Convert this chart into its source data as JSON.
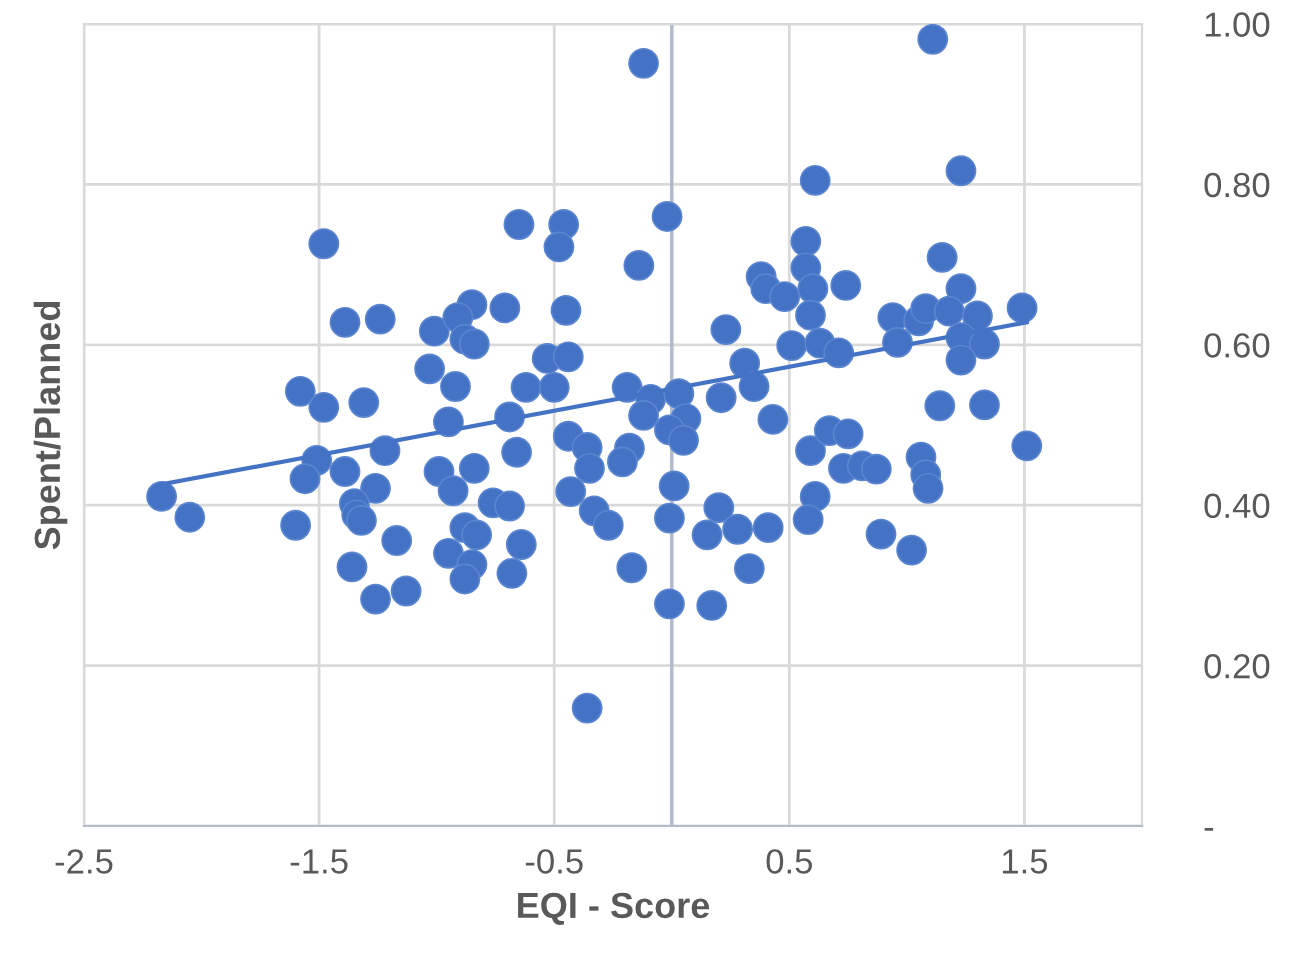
{
  "chart_data": {
    "type": "scatter",
    "xlabel": "EQI - Score",
    "ylabel": "Spent/Planned",
    "xlim": [
      -2.5,
      2.0
    ],
    "xticks": [
      {
        "value": -2.5,
        "label": "-2.5"
      },
      {
        "value": -1.5,
        "label": "-1.5"
      },
      {
        "value": -0.5,
        "label": "-0.5"
      },
      {
        "value": 0.5,
        "label": "0.5"
      },
      {
        "value": 1.5,
        "label": "1.5"
      }
    ],
    "ylim": [
      0,
      1.0
    ],
    "yticks": [
      {
        "value": 0,
        "label": "-"
      },
      {
        "value": 0.2,
        "label": "0.20"
      },
      {
        "value": 0.4,
        "label": "0.40"
      },
      {
        "value": 0.6,
        "label": "0.60"
      },
      {
        "value": 0.8,
        "label": "0.80"
      },
      {
        "value": 1.0,
        "label": "1.00"
      }
    ],
    "grid": true,
    "marker": "circle",
    "ref_lines": [
      {
        "axis": "x",
        "value": 0,
        "color": "#b4bccc"
      }
    ],
    "series": [
      {
        "color": "#4472c4",
        "x": [
          -1.48,
          -1.39,
          -1.24,
          -1.01,
          -0.85,
          -0.91,
          -0.88,
          -1.03,
          -0.92,
          -1.58,
          -1.48,
          -1.31,
          -0.95,
          -1.22,
          -1.51,
          -1.56,
          -1.39,
          -1.26,
          -0.99,
          -0.93,
          -0.84,
          -2.17,
          -2.05,
          -1.6,
          -1.35,
          -1.34,
          -1.32,
          -1.17,
          -0.88,
          -0.95,
          -0.85,
          -0.88,
          -1.36,
          -1.26,
          -1.13,
          -0.12,
          -0.02,
          -0.65,
          -0.46,
          -0.48,
          -0.14,
          0.61,
          0.57,
          0.57,
          0.6,
          0.59,
          0.38,
          0.4,
          0.48,
          0.74,
          0.51,
          0.63,
          0.71,
          0.23,
          0.31,
          0.35,
          0.21,
          0.43,
          -0.71,
          -0.84,
          -0.45,
          -0.53,
          -0.44,
          -0.62,
          -0.5,
          -0.69,
          -0.66,
          -0.44,
          -0.36,
          -0.35,
          -0.19,
          -0.09,
          -0.12,
          0.03,
          0.06,
          -0.01,
          0.05,
          -0.18,
          -0.21,
          -0.43,
          -0.33,
          -0.27,
          -0.76,
          -0.69,
          -0.83,
          -0.64,
          -0.68,
          -0.17,
          0.01,
          -0.01,
          -0.01,
          0.17,
          0.2,
          0.15,
          0.28,
          0.41,
          0.33,
          0.59,
          0.67,
          0.73,
          0.61,
          0.58,
          -0.36,
          1.11,
          1.23,
          1.15,
          1.23,
          0.94,
          1.05,
          1.08,
          1.18,
          1.3,
          1.49,
          0.96,
          1.23,
          1.33,
          1.23,
          1.14,
          1.33,
          1.51,
          0.75,
          0.81,
          0.87,
          1.06,
          1.08,
          1.09,
          0.89,
          1.02
        ],
        "values": [
          0.726,
          0.628,
          0.632,
          0.617,
          0.65,
          0.634,
          0.607,
          0.57,
          0.548,
          0.542,
          0.522,
          0.528,
          0.504,
          0.468,
          0.456,
          0.433,
          0.442,
          0.421,
          0.442,
          0.418,
          0.446,
          0.411,
          0.385,
          0.375,
          0.402,
          0.388,
          0.381,
          0.356,
          0.372,
          0.34,
          0.326,
          0.308,
          0.323,
          0.283,
          0.293,
          0.951,
          0.76,
          0.75,
          0.75,
          0.722,
          0.699,
          0.805,
          0.729,
          0.696,
          0.67,
          0.637,
          0.685,
          0.67,
          0.66,
          0.674,
          0.599,
          0.602,
          0.59,
          0.619,
          0.577,
          0.548,
          0.534,
          0.507,
          0.646,
          0.601,
          0.643,
          0.583,
          0.585,
          0.547,
          0.547,
          0.51,
          0.466,
          0.486,
          0.472,
          0.446,
          0.547,
          0.532,
          0.512,
          0.539,
          0.508,
          0.494,
          0.481,
          0.471,
          0.454,
          0.417,
          0.393,
          0.375,
          0.403,
          0.399,
          0.363,
          0.351,
          0.315,
          0.322,
          0.424,
          0.384,
          0.277,
          0.275,
          0.397,
          0.363,
          0.37,
          0.372,
          0.321,
          0.468,
          0.493,
          0.446,
          0.411,
          0.382,
          0.147,
          0.981,
          0.817,
          0.709,
          0.67,
          0.634,
          0.63,
          0.645,
          0.642,
          0.636,
          0.646,
          0.603,
          0.609,
          0.601,
          0.581,
          0.524,
          0.525,
          0.474,
          0.489,
          0.449,
          0.445,
          0.46,
          0.438,
          0.421,
          0.364,
          0.344
        ]
      },
      {
        "type": "line",
        "color": "#4472c4",
        "marker": "none",
        "line_style": "solid",
        "x": [
          -2.17,
          1.51
        ],
        "values": [
          0.426,
          0.628
        ]
      }
    ]
  }
}
